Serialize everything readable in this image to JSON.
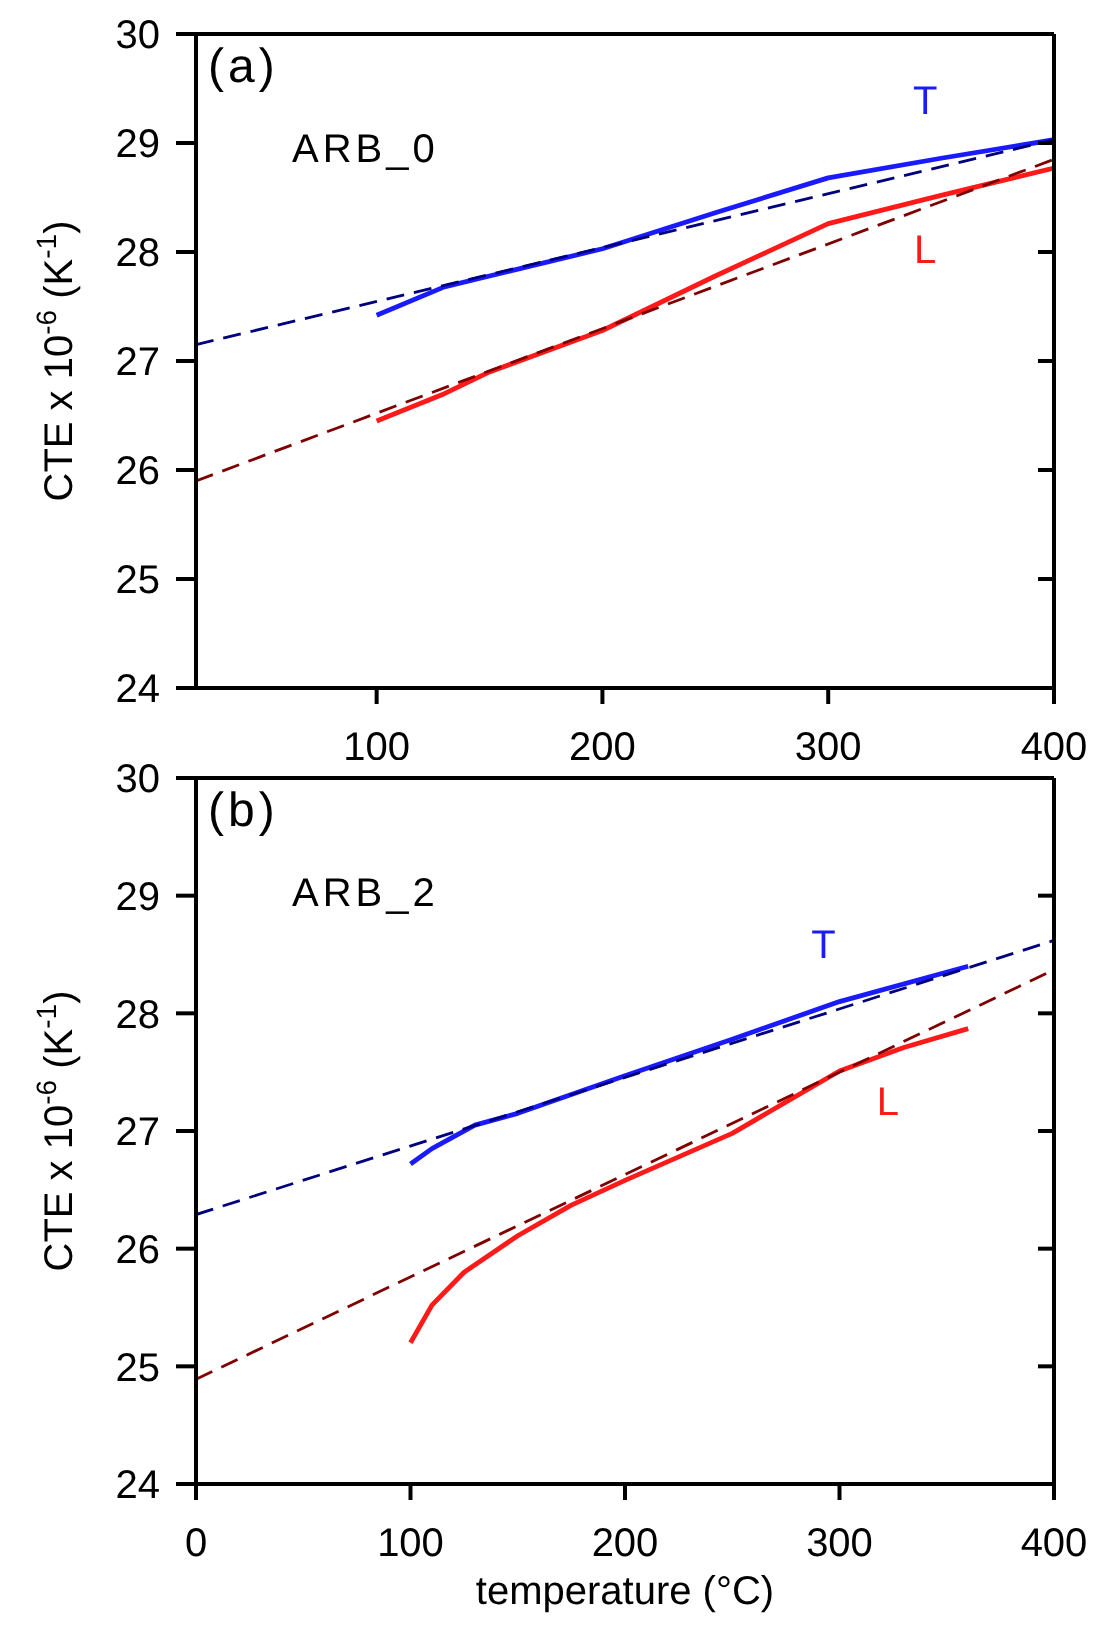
{
  "chart_data": [
    {
      "type": "line",
      "ylabel": "CTE x 10$^{-6}$ (K$^{-1}$)",
      "annotations": [
        "(a)",
        "ARB_0"
      ],
      "xlim": [
        20,
        400
      ],
      "xticks": [
        100,
        200,
        300,
        400
      ],
      "ylim": [
        24,
        30
      ],
      "yticks": [
        24,
        25,
        26,
        27,
        28,
        29,
        30
      ],
      "marker": "none",
      "series": [
        {
          "name": "T",
          "color": "#1a1aff",
          "line_style": "solid",
          "x": [
            100,
            130,
            150,
            200,
            250,
            300,
            350,
            400
          ],
          "values": [
            27.42,
            27.68,
            27.78,
            28.03,
            28.36,
            28.68,
            28.86,
            29.03
          ]
        },
        {
          "name": "L",
          "color": "#ff1a1a",
          "line_style": "solid",
          "x": [
            100,
            130,
            150,
            200,
            250,
            300,
            350,
            400
          ],
          "values": [
            26.45,
            26.7,
            26.9,
            27.28,
            27.78,
            28.26,
            28.52,
            28.77
          ]
        },
        {
          "color": "#00007f",
          "line_style": "dashed",
          "x": [
            20,
            400
          ],
          "values": [
            27.15,
            29.03
          ]
        },
        {
          "color": "#7f0000",
          "line_style": "dashed",
          "x": [
            20,
            400
          ],
          "values": [
            25.9,
            28.85
          ]
        }
      ]
    },
    {
      "type": "line",
      "xlabel": "temperature (°C)",
      "ylabel": "CTE x 10$^{-6}$ (K$^{-1}$)",
      "annotations": [
        "(b)",
        "ARB_2"
      ],
      "xlim": [
        0,
        400
      ],
      "xticks": [
        0,
        100,
        200,
        300,
        400
      ],
      "ylim": [
        24,
        30
      ],
      "yticks": [
        24,
        25,
        26,
        27,
        28,
        29,
        30
      ],
      "marker": "none",
      "series": [
        {
          "name": "T",
          "color": "#1a1aff",
          "line_style": "solid",
          "x": [
            100,
            110,
            130,
            150,
            200,
            250,
            300,
            360
          ],
          "values": [
            26.72,
            26.85,
            27.05,
            27.15,
            27.47,
            27.78,
            28.1,
            28.4
          ]
        },
        {
          "name": "L",
          "color": "#ff1a1a",
          "line_style": "solid",
          "x": [
            100,
            110,
            125,
            150,
            175,
            200,
            250,
            300,
            330,
            360
          ],
          "values": [
            25.2,
            25.52,
            25.8,
            26.11,
            26.37,
            26.58,
            26.98,
            27.51,
            27.71,
            27.87
          ]
        },
        {
          "color": "#00007f",
          "line_style": "dashed",
          "x": [
            0,
            400
          ],
          "values": [
            26.29,
            28.62
          ]
        },
        {
          "color": "#7f0000",
          "line_style": "dashed",
          "x": [
            0,
            400
          ],
          "values": [
            24.89,
            28.37
          ]
        }
      ]
    }
  ]
}
